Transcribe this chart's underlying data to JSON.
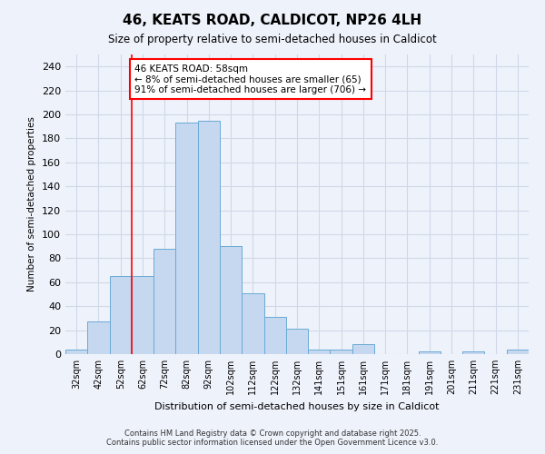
{
  "title": "46, KEATS ROAD, CALDICOT, NP26 4LH",
  "subtitle": "Size of property relative to semi-detached houses in Caldicot",
  "xlabel": "Distribution of semi-detached houses by size in Caldicot",
  "ylabel": "Number of semi-detached properties",
  "categories": [
    "32sqm",
    "42sqm",
    "52sqm",
    "62sqm",
    "72sqm",
    "82sqm",
    "92sqm",
    "102sqm",
    "112sqm",
    "122sqm",
    "132sqm",
    "141sqm",
    "151sqm",
    "161sqm",
    "171sqm",
    "181sqm",
    "191sqm",
    "201sqm",
    "211sqm",
    "221sqm",
    "231sqm"
  ],
  "values": [
    4,
    27,
    65,
    65,
    88,
    193,
    195,
    90,
    51,
    31,
    21,
    4,
    4,
    8,
    0,
    0,
    2,
    0,
    2,
    0,
    4
  ],
  "bar_color": "#c5d8f0",
  "bar_edge_color": "#6aaad4",
  "annotation_title": "46 KEATS ROAD: 58sqm",
  "annotation_line1": "← 8% of semi-detached houses are smaller (65)",
  "annotation_line2": "91% of semi-detached houses are larger (706) →",
  "ylim": [
    0,
    250
  ],
  "yticks": [
    0,
    20,
    40,
    60,
    80,
    100,
    120,
    140,
    160,
    180,
    200,
    220,
    240
  ],
  "background_color": "#eef2fb",
  "grid_color": "#d0d8e8",
  "footer_line1": "Contains HM Land Registry data © Crown copyright and database right 2025.",
  "footer_line2": "Contains public sector information licensed under the Open Government Licence v3.0."
}
